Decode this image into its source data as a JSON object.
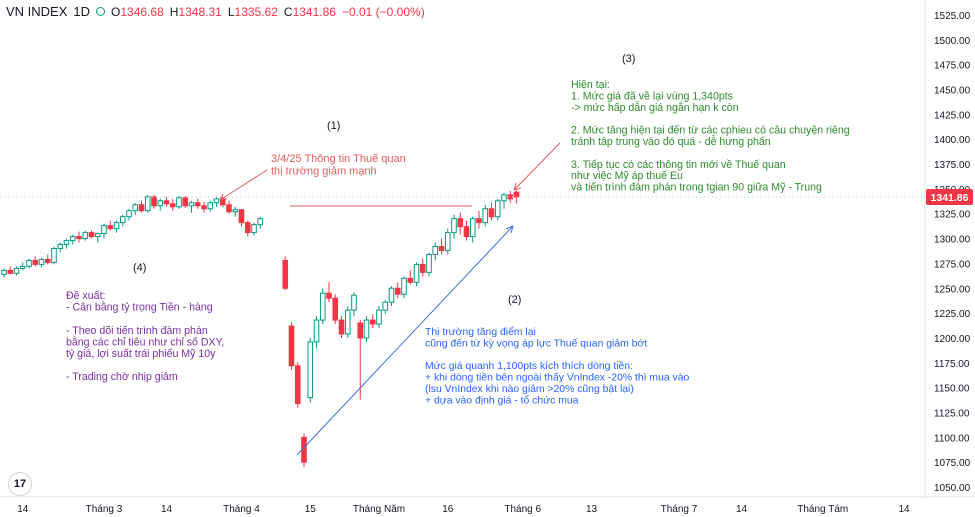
{
  "header": {
    "symbol": "VN INDEX",
    "interval": "1D",
    "open_label": "O",
    "open": "1346.68",
    "high_label": "H",
    "high": "1348.31",
    "low_label": "L",
    "low": "1335.62",
    "close_label": "C",
    "close": "1341.86",
    "change": "−0.01 (−0.00%)"
  },
  "logo_text": "17",
  "colors": {
    "up": "#089981",
    "down": "#f23645",
    "annotation_red": "#e45b5b",
    "green_text": "#2e8b2e",
    "blue_text": "#2962ff",
    "purple_text": "#7b2fa5",
    "arrow_blue": "#3b6fd8",
    "price_tag": "#f23645"
  },
  "chart_data": {
    "type": "candlestick",
    "ylim": [
      1040,
      1540
    ],
    "y_ticks": [
      1050,
      1075,
      1100,
      1125,
      1150,
      1175,
      1200,
      1225,
      1250,
      1275,
      1300,
      1325,
      1350,
      1375,
      1400,
      1425,
      1450,
      1475,
      1500,
      1525
    ],
    "y_tick_labels": [
      "1050.00",
      "1075.00",
      "1100.00",
      "1125.00",
      "1150.00",
      "1175.00",
      "1200.00",
      "1225.00",
      "1250.00",
      "1275.00",
      "1300.00",
      "1325.00",
      "1350.00",
      "1375.00",
      "1400.00",
      "1425.00",
      "1450.00",
      "1475.00",
      "1500.00",
      "1525.00"
    ],
    "last_price": 1341.86,
    "last_price_label": "1341.86",
    "x_ticks": [
      {
        "i": 3,
        "label": "14"
      },
      {
        "i": 16,
        "label": "Tháng 3"
      },
      {
        "i": 26,
        "label": "14"
      },
      {
        "i": 38,
        "label": "Tháng 4"
      },
      {
        "i": 49,
        "label": "15"
      },
      {
        "i": 60,
        "label": "Tháng Năm"
      },
      {
        "i": 71,
        "label": "16"
      },
      {
        "i": 83,
        "label": "Tháng 6"
      },
      {
        "i": 94,
        "label": "13"
      },
      {
        "i": 108,
        "label": "Tháng 7"
      },
      {
        "i": 118,
        "label": "14"
      },
      {
        "i": 131,
        "label": "Tháng Tám"
      },
      {
        "i": 144,
        "label": "14"
      }
    ],
    "candles": [
      [
        1264,
        1270,
        1261,
        1268
      ],
      [
        1268,
        1272,
        1264,
        1265
      ],
      [
        1265,
        1272,
        1263,
        1270
      ],
      [
        1270,
        1276,
        1268,
        1272
      ],
      [
        1272,
        1280,
        1270,
        1278
      ],
      [
        1278,
        1282,
        1272,
        1274
      ],
      [
        1274,
        1281,
        1271,
        1279
      ],
      [
        1279,
        1284,
        1274,
        1276
      ],
      [
        1276,
        1292,
        1274,
        1290
      ],
      [
        1290,
        1296,
        1286,
        1294
      ],
      [
        1294,
        1300,
        1290,
        1298
      ],
      [
        1298,
        1304,
        1294,
        1302
      ],
      [
        1302,
        1307,
        1296,
        1300
      ],
      [
        1300,
        1308,
        1298,
        1306
      ],
      [
        1306,
        1308,
        1300,
        1302
      ],
      [
        1302,
        1306,
        1296,
        1305
      ],
      [
        1305,
        1315,
        1300,
        1313
      ],
      [
        1313,
        1318,
        1308,
        1310
      ],
      [
        1310,
        1318,
        1306,
        1316
      ],
      [
        1316,
        1324,
        1312,
        1322
      ],
      [
        1322,
        1330,
        1318,
        1328
      ],
      [
        1328,
        1336,
        1324,
        1334
      ],
      [
        1334,
        1338,
        1326,
        1328
      ],
      [
        1328,
        1344,
        1326,
        1342
      ],
      [
        1342,
        1344,
        1330,
        1333
      ],
      [
        1333,
        1340,
        1328,
        1338
      ],
      [
        1338,
        1342,
        1332,
        1335
      ],
      [
        1335,
        1340,
        1328,
        1332
      ],
      [
        1332,
        1343,
        1330,
        1341
      ],
      [
        1341,
        1343,
        1331,
        1333
      ],
      [
        1333,
        1338,
        1326,
        1336
      ],
      [
        1336,
        1340,
        1330,
        1333
      ],
      [
        1333,
        1337,
        1326,
        1330
      ],
      [
        1330,
        1338,
        1327,
        1336
      ],
      [
        1336,
        1342,
        1332,
        1340
      ],
      [
        1340,
        1342,
        1332,
        1334
      ],
      [
        1334,
        1338,
        1325,
        1327
      ],
      [
        1327,
        1332,
        1322,
        1329
      ],
      [
        1329,
        1330,
        1312,
        1316
      ],
      [
        1316,
        1318,
        1302,
        1306
      ],
      [
        1306,
        1316,
        1303,
        1314
      ],
      [
        1314,
        1322,
        1310,
        1320
      ],
      [
        1278,
        1282,
        1248,
        1250
      ],
      [
        1212,
        1216,
        1168,
        1172
      ],
      [
        1172,
        1176,
        1130,
        1134
      ],
      [
        1100,
        1104,
        1070,
        1075
      ],
      [
        1140,
        1200,
        1135,
        1196
      ],
      [
        1196,
        1222,
        1190,
        1218
      ],
      [
        1218,
        1250,
        1214,
        1245
      ],
      [
        1245,
        1256,
        1236,
        1240
      ],
      [
        1240,
        1244,
        1214,
        1218
      ],
      [
        1218,
        1222,
        1200,
        1204
      ],
      [
        1204,
        1232,
        1200,
        1228
      ],
      [
        1228,
        1246,
        1222,
        1243
      ],
      [
        1215,
        1218,
        1138,
        1200
      ],
      [
        1200,
        1222,
        1196,
        1218
      ],
      [
        1218,
        1224,
        1210,
        1214
      ],
      [
        1214,
        1232,
        1210,
        1228
      ],
      [
        1228,
        1238,
        1224,
        1236
      ],
      [
        1236,
        1252,
        1232,
        1250
      ],
      [
        1250,
        1256,
        1240,
        1244
      ],
      [
        1244,
        1262,
        1240,
        1260
      ],
      [
        1260,
        1268,
        1254,
        1256
      ],
      [
        1256,
        1276,
        1252,
        1274
      ],
      [
        1274,
        1280,
        1262,
        1266
      ],
      [
        1266,
        1286,
        1262,
        1284
      ],
      [
        1284,
        1296,
        1278,
        1292
      ],
      [
        1292,
        1300,
        1284,
        1288
      ],
      [
        1288,
        1310,
        1284,
        1306
      ],
      [
        1306,
        1324,
        1300,
        1320
      ],
      [
        1320,
        1326,
        1304,
        1312
      ],
      [
        1312,
        1318,
        1298,
        1302
      ],
      [
        1302,
        1322,
        1296,
        1320
      ],
      [
        1320,
        1328,
        1310,
        1316
      ],
      [
        1316,
        1334,
        1312,
        1330
      ],
      [
        1330,
        1336,
        1318,
        1322
      ],
      [
        1322,
        1340,
        1318,
        1338
      ],
      [
        1338,
        1346,
        1330,
        1344
      ],
      [
        1344,
        1348,
        1336,
        1340
      ],
      [
        1346.68,
        1348.31,
        1335.62,
        1341.86
      ]
    ]
  },
  "annotations": {
    "n1": "(1)",
    "n2": "(2)",
    "n3": "(3)",
    "n4": "(4)",
    "tariff": [
      "3/4/25 Thông tin Thuế quan",
      "thị trường giảm mạnh"
    ],
    "current": [
      "Hiện tại:",
      "1. Mức giá đã về lại vùng 1,340pts",
      "-> mức hấp dẫn giá ngắn hạn k còn",
      "",
      "2. Mức tăng hiện tại đến từ các cphieu có câu chuyện riêng",
      "tránh tập trung vào đó quá - dễ hưng phấn",
      "",
      "3. Tiếp tục có các thông tin mới về Thuế quan",
      "như việc Mỹ áp thuế Eu",
      "và tiến trình đàm phán trong tgian 90 giữa Mỹ - Trung"
    ],
    "recovery": [
      "Thị trường tăng điểm lại",
      "cũng đến từ kỳ vọng áp lực Thuế quan giảm bớt",
      "",
      "Mức giá quanh 1,100pts kích thích dòng tiền:",
      "+ khi dòng tiền bên ngoài thấy VnIndex -20% thì mua vào",
      "(lsu VnIndex khi nào giảm >20% cũng bật lại)",
      "+ dựa vào định giá - tổ chức mua"
    ],
    "proposal": [
      "Đề xuất:",
      "- Cân bằng tỷ trọng Tiền - hàng",
      "",
      "- Theo dõi tiến trình đàm phán",
      "bằng các chỉ tiêu như chỉ số DXY,",
      "tỷ giá, lợi suất trái phiếu Mỹ 10y",
      "",
      "- Trading chờ nhịp giảm"
    ]
  }
}
